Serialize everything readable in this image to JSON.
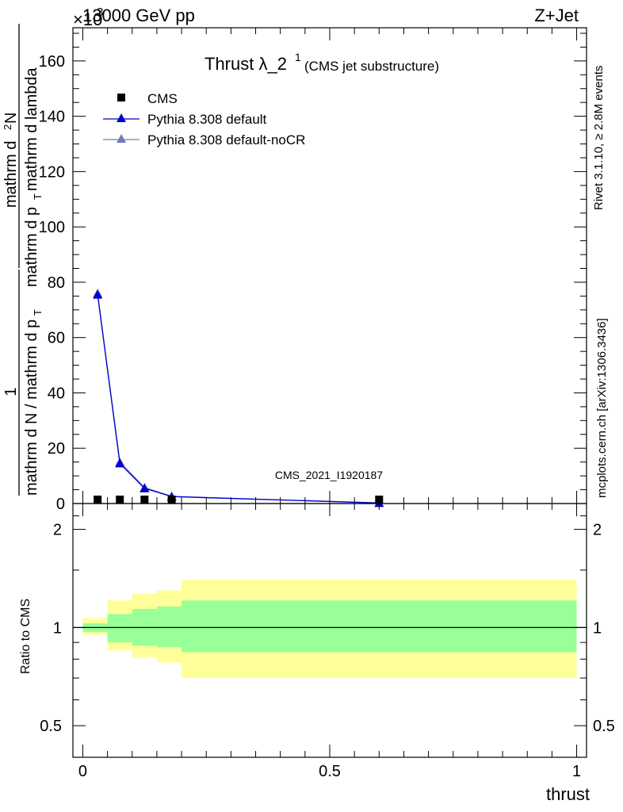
{
  "header": {
    "left": "13000 GeV pp",
    "right": "Z+Jet",
    "exponent": "×10",
    "exponent_power": "3"
  },
  "title": {
    "main": "Thrust λ_2",
    "superscript": "1",
    "sub": "(CMS jet substructure)"
  },
  "side_labels": {
    "rivet": "Rivet 3.1.10, ≥ 2.8M events",
    "mcplots": "mcplots.cern.ch [arXiv:1306.3436]"
  },
  "watermark": "CMS_2021_I1920187",
  "ylabel_main": {
    "numerator_one": "1",
    "denominator_one": "mathrm d N / mathrm d p",
    "denominator_one_sub": "T",
    "denominator_two": "mathrm d p",
    "denominator_two_sub": "T",
    "denominator_two_rest": "mathrm d lambda",
    "numerator_two": "mathrm d",
    "numerator_two_sup": "2",
    "numerator_two_rest": "N"
  },
  "ylabel_ratio": "Ratio to CMS",
  "xlabel": "thrust",
  "colors": {
    "cms": "#000000",
    "pythia_default": "#0000cc",
    "pythia_nocr": "#7777bb",
    "band_inner": "#99ff99",
    "band_outer": "#ffff99",
    "watermark": "#888888",
    "side_text": "#888888"
  },
  "chart_data": [
    {
      "type": "line",
      "title": "Thrust λ_2^1 (CMS jet substructure)",
      "xlim": [
        0,
        1
      ],
      "ylim": [
        0,
        172
      ],
      "y_multiplier": "×10^3",
      "yticks": [
        0,
        20,
        40,
        60,
        80,
        100,
        120,
        140,
        160
      ],
      "ytick_labels": [
        "0",
        "20",
        "40",
        "60",
        "80",
        "100",
        "120",
        "140",
        "160"
      ],
      "legend": [
        {
          "name": "CMS",
          "marker": "square",
          "color": "#000000"
        },
        {
          "name": "Pythia 8.308 default",
          "marker": "triangle",
          "color": "#0000cc"
        },
        {
          "name": "Pythia 8.308 default-noCR",
          "marker": "triangle",
          "color": "#7777bb"
        }
      ],
      "legend_position": "top-left",
      "series": [
        {
          "name": "CMS",
          "x": [
            0.03,
            0.075,
            0.125,
            0.18,
            0.6
          ],
          "y": [
            0.3,
            0.3,
            0.3,
            0.2,
            0.1
          ]
        },
        {
          "name": "Pythia 8.308 default",
          "x": [
            0.03,
            0.075,
            0.125,
            0.18,
            0.6
          ],
          "y": [
            75.5,
            14.5,
            5.5,
            2.5,
            0.2
          ]
        },
        {
          "name": "Pythia 8.308 default-noCR",
          "x": [
            0.03,
            0.075,
            0.125,
            0.18,
            0.6
          ],
          "y": [
            76,
            15,
            5.8,
            2.6,
            0.2
          ]
        }
      ]
    },
    {
      "type": "area",
      "ylabel": "Ratio to CMS",
      "xlabel": "thrust",
      "xlim": [
        0,
        1
      ],
      "ylim": [
        0.4,
        2.4
      ],
      "log_y": true,
      "xticks": [
        0,
        0.5,
        1
      ],
      "xtick_labels": [
        "0",
        "0.5",
        "1"
      ],
      "yticks": [
        0.5,
        1,
        2
      ],
      "ytick_labels": [
        "0.5",
        "1",
        "2"
      ],
      "bins": [
        {
          "x0": 0.0,
          "x1": 0.05,
          "inner_lo": 0.97,
          "inner_hi": 1.03,
          "outer_lo": 0.95,
          "outer_hi": 1.07
        },
        {
          "x0": 0.05,
          "x1": 0.1,
          "inner_lo": 0.9,
          "inner_hi": 1.1,
          "outer_lo": 0.85,
          "outer_hi": 1.21
        },
        {
          "x0": 0.1,
          "x1": 0.15,
          "inner_lo": 0.88,
          "inner_hi": 1.14,
          "outer_lo": 0.81,
          "outer_hi": 1.27
        },
        {
          "x0": 0.15,
          "x1": 0.2,
          "inner_lo": 0.87,
          "inner_hi": 1.16,
          "outer_lo": 0.78,
          "outer_hi": 1.3
        },
        {
          "x0": 0.2,
          "x1": 1.0,
          "inner_lo": 0.84,
          "inner_hi": 1.21,
          "outer_lo": 0.7,
          "outer_hi": 1.4
        }
      ],
      "reference_line": 1
    }
  ]
}
